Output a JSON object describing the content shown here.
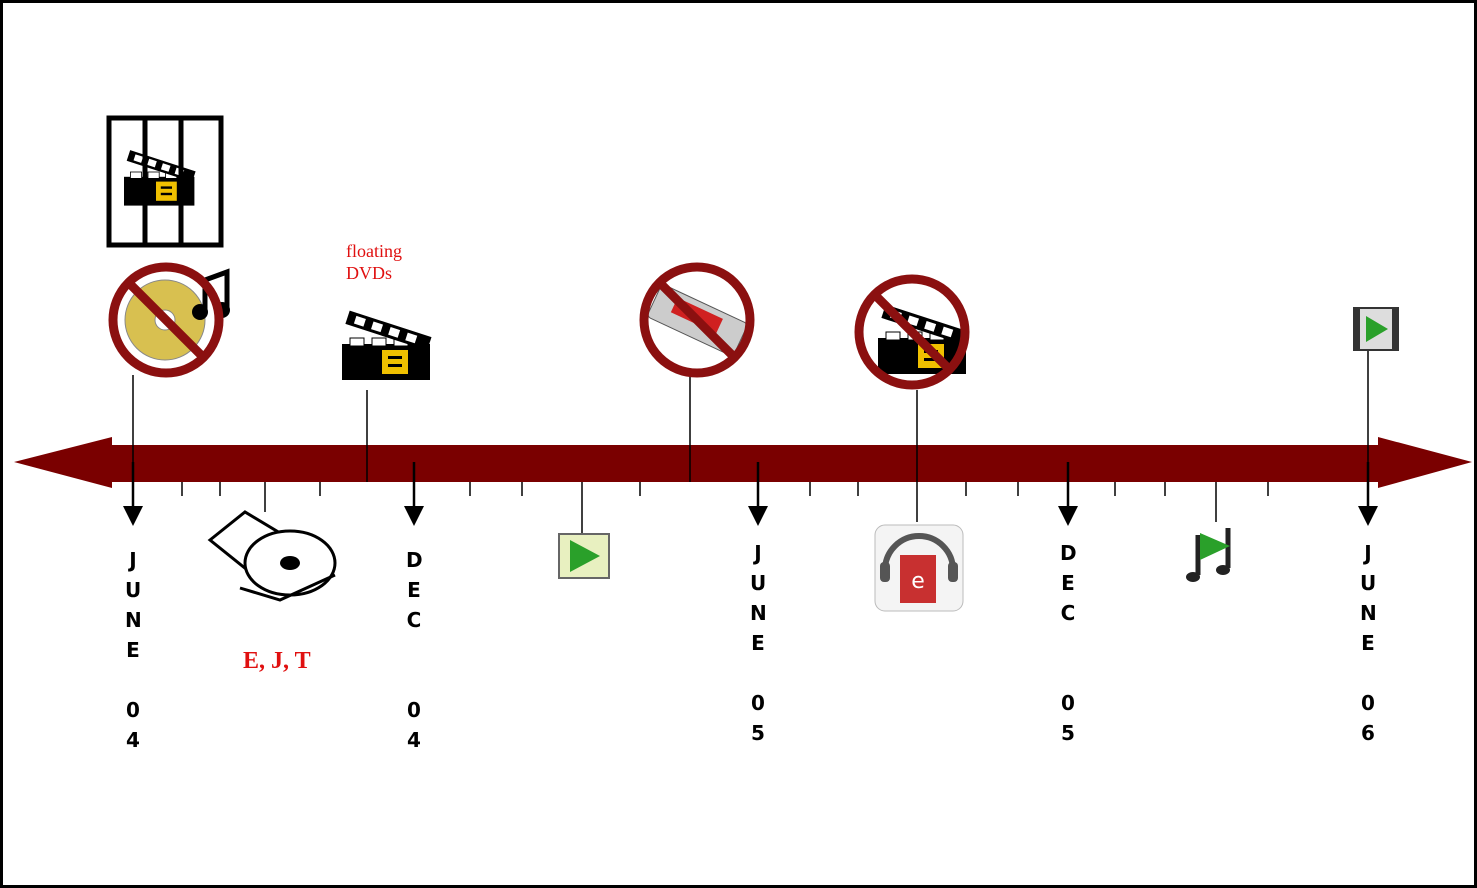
{
  "notes": [
    {
      "lines": [
        "floating",
        "DVDs"
      ]
    },
    {
      "lines": [
        "E, J, T"
      ]
    }
  ],
  "markers": [
    {
      "month": "JUNE",
      "year": "04"
    },
    {
      "month": "DEC",
      "year": "04"
    },
    {
      "month": "JUNE",
      "year": "05"
    },
    {
      "month": "DEC",
      "year": "05"
    },
    {
      "month": "JUNE",
      "year": "06"
    }
  ]
}
